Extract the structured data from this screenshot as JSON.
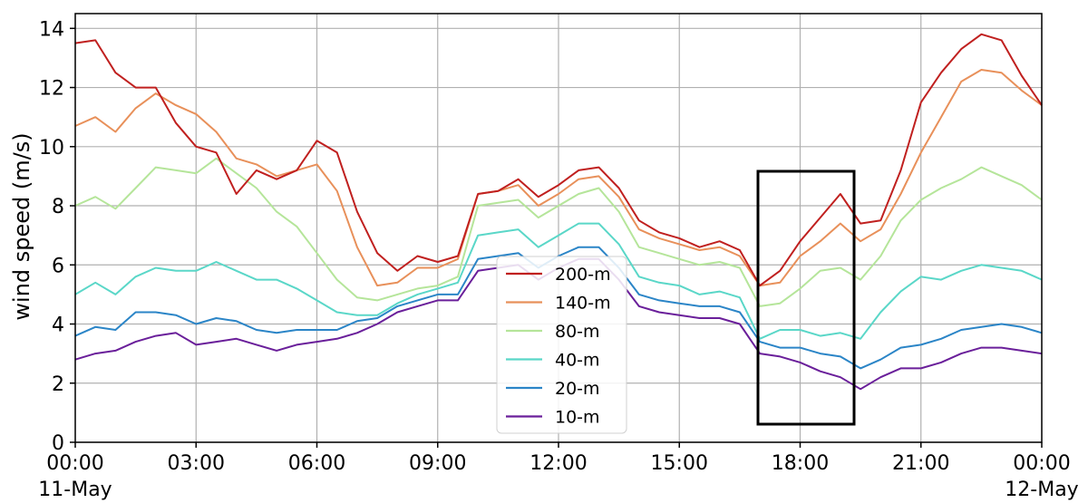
{
  "chart_data": {
    "type": "line",
    "title": "",
    "xlabel": "",
    "ylabel": "wind speed (m/s)",
    "x_ticks": [
      "00:00",
      "03:00",
      "06:00",
      "09:00",
      "12:00",
      "15:00",
      "18:00",
      "21:00",
      "00:00"
    ],
    "x_tick_dates": [
      "11-May",
      "",
      "",
      "",
      "",
      "",
      "",
      "",
      "12-May"
    ],
    "x_range_hours": [
      0,
      24
    ],
    "y_ticks": [
      0,
      2,
      4,
      6,
      8,
      10,
      12,
      14
    ],
    "ylim": [
      0,
      14.5
    ],
    "grid": true,
    "legend_position": "center-bottom",
    "highlight_box": {
      "x_hours": [
        17.1,
        19.5
      ],
      "y": [
        0.6,
        9.2
      ]
    },
    "hours": [
      0,
      0.5,
      1,
      1.5,
      2,
      2.5,
      3,
      3.5,
      4,
      4.5,
      5,
      5.5,
      6,
      6.5,
      7,
      7.5,
      8,
      8.5,
      9,
      9.5,
      10,
      10.5,
      11,
      11.5,
      12,
      12.5,
      13,
      13.5,
      14,
      14.5,
      15,
      15.5,
      16,
      16.5,
      17,
      17.5,
      18,
      18.5,
      19,
      19.5,
      20,
      20.5,
      21,
      21.5,
      22,
      22.5,
      23,
      23.5,
      24
    ],
    "series": [
      {
        "name": "200-m",
        "color": "#c0201f",
        "values": [
          13.5,
          13.6,
          12.5,
          12.0,
          12.0,
          10.8,
          10.0,
          9.8,
          8.4,
          9.2,
          8.9,
          9.2,
          10.2,
          9.8,
          7.8,
          6.4,
          5.8,
          6.3,
          6.1,
          6.3,
          8.4,
          8.5,
          8.9,
          8.3,
          8.7,
          9.2,
          9.3,
          8.6,
          7.5,
          7.1,
          6.9,
          6.6,
          6.8,
          6.5,
          5.3,
          5.8,
          6.8,
          7.6,
          8.4,
          7.4,
          7.5,
          9.2,
          11.5,
          12.5,
          13.3,
          13.8,
          13.6,
          12.4,
          11.4
        ]
      },
      {
        "name": "140-m",
        "color": "#e8905a",
        "values": [
          10.7,
          11.0,
          10.5,
          11.3,
          11.8,
          11.4,
          11.1,
          10.5,
          9.6,
          9.4,
          9.0,
          9.2,
          9.4,
          8.5,
          6.6,
          5.3,
          5.4,
          5.9,
          5.9,
          6.2,
          8.4,
          8.5,
          8.7,
          8.0,
          8.4,
          8.9,
          9.0,
          8.3,
          7.2,
          6.9,
          6.7,
          6.5,
          6.6,
          6.3,
          5.3,
          5.4,
          6.3,
          6.8,
          7.4,
          6.8,
          7.2,
          8.4,
          9.8,
          11.0,
          12.2,
          12.6,
          12.5,
          11.9,
          11.4
        ]
      },
      {
        "name": "80-m",
        "color": "#b5e59a",
        "values": [
          8.0,
          8.3,
          7.9,
          8.6,
          9.3,
          9.2,
          9.1,
          9.6,
          9.1,
          8.6,
          7.8,
          7.3,
          6.4,
          5.5,
          4.9,
          4.8,
          5.0,
          5.2,
          5.3,
          5.6,
          8.0,
          8.1,
          8.2,
          7.6,
          8.0,
          8.4,
          8.6,
          7.8,
          6.6,
          6.4,
          6.2,
          6.0,
          6.1,
          5.9,
          4.6,
          4.7,
          5.2,
          5.8,
          5.9,
          5.5,
          6.3,
          7.5,
          8.2,
          8.6,
          8.9,
          9.3,
          9.0,
          8.7,
          8.2
        ]
      },
      {
        "name": "40-m",
        "color": "#5ad7c8",
        "values": [
          5.0,
          5.4,
          5.0,
          5.6,
          5.9,
          5.8,
          5.8,
          6.1,
          5.8,
          5.5,
          5.5,
          5.2,
          4.8,
          4.4,
          4.3,
          4.3,
          4.7,
          5.0,
          5.2,
          5.4,
          7.0,
          7.1,
          7.2,
          6.6,
          7.0,
          7.4,
          7.4,
          6.7,
          5.6,
          5.4,
          5.3,
          5.0,
          5.1,
          4.9,
          3.5,
          3.8,
          3.8,
          3.6,
          3.7,
          3.5,
          4.4,
          5.1,
          5.6,
          5.5,
          5.8,
          6.0,
          5.9,
          5.8,
          5.5
        ]
      },
      {
        "name": "20-m",
        "color": "#2b85c7",
        "values": [
          3.6,
          3.9,
          3.8,
          4.4,
          4.4,
          4.3,
          4.0,
          4.2,
          4.1,
          3.8,
          3.7,
          3.8,
          3.8,
          3.8,
          4.1,
          4.2,
          4.6,
          4.8,
          5.0,
          5.0,
          6.2,
          6.3,
          6.4,
          5.9,
          6.3,
          6.6,
          6.6,
          5.9,
          5.0,
          4.8,
          4.7,
          4.6,
          4.6,
          4.4,
          3.4,
          3.2,
          3.2,
          3.0,
          2.9,
          2.5,
          2.8,
          3.2,
          3.3,
          3.5,
          3.8,
          3.9,
          4.0,
          3.9,
          3.7
        ]
      },
      {
        "name": "10-m",
        "color": "#6a1f9a",
        "values": [
          2.8,
          3.0,
          3.1,
          3.4,
          3.6,
          3.7,
          3.3,
          3.4,
          3.5,
          3.3,
          3.1,
          3.3,
          3.4,
          3.5,
          3.7,
          4.0,
          4.4,
          4.6,
          4.8,
          4.8,
          5.8,
          5.9,
          6.0,
          5.5,
          5.9,
          6.2,
          6.2,
          5.5,
          4.6,
          4.4,
          4.3,
          4.2,
          4.2,
          4.0,
          3.0,
          2.9,
          2.7,
          2.4,
          2.2,
          1.8,
          2.2,
          2.5,
          2.5,
          2.7,
          3.0,
          3.2,
          3.2,
          3.1,
          3.0
        ]
      }
    ]
  }
}
